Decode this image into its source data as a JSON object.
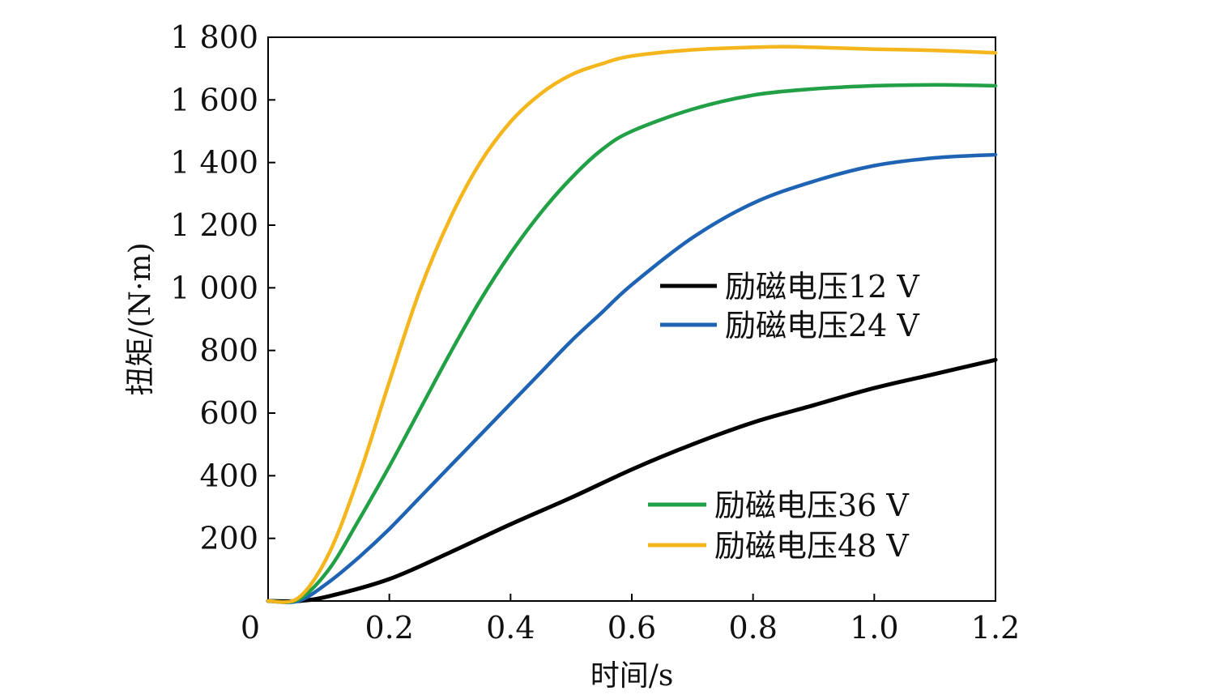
{
  "chart_data": {
    "type": "line",
    "xlabel": "时间/s",
    "ylabel": "扭矩/(N·m)",
    "xlim": [
      0,
      1.2
    ],
    "ylim": [
      0,
      1800
    ],
    "x_ticks": [
      0,
      0.2,
      0.4,
      0.6,
      0.8,
      1.0,
      1.2
    ],
    "x_tick_labels": [
      "0",
      "0.2",
      "0.4",
      "0.6",
      "0.8",
      "1.0",
      "1.2"
    ],
    "y_ticks": [
      200,
      400,
      600,
      800,
      1000,
      1200,
      1400,
      1600,
      1800
    ],
    "y_tick_labels": [
      "200",
      "400",
      "600",
      "800",
      "1 000",
      "1 200",
      "1 400",
      "1 600",
      "1 800"
    ],
    "grid": false,
    "legends": [
      {
        "placement": "center-right",
        "entries": [
          0,
          1
        ]
      },
      {
        "placement": "bottom-right",
        "entries": [
          2,
          3
        ]
      }
    ],
    "series": [
      {
        "name": "励磁电压12 V",
        "color": "#000000",
        "x": [
          0,
          0.05,
          0.1,
          0.2,
          0.3,
          0.4,
          0.5,
          0.6,
          0.7,
          0.8,
          0.9,
          1.0,
          1.1,
          1.2
        ],
        "y": [
          0,
          0,
          15,
          70,
          155,
          245,
          330,
          420,
          500,
          570,
          625,
          680,
          725,
          770
        ]
      },
      {
        "name": "励磁电压24 V",
        "color": "#1f64b4",
        "x": [
          0,
          0.05,
          0.1,
          0.15,
          0.2,
          0.25,
          0.3,
          0.35,
          0.4,
          0.45,
          0.5,
          0.55,
          0.6,
          0.7,
          0.8,
          0.9,
          1.0,
          1.1,
          1.2
        ],
        "y": [
          0,
          0,
          60,
          140,
          230,
          330,
          430,
          530,
          630,
          730,
          830,
          920,
          1010,
          1160,
          1270,
          1340,
          1390,
          1415,
          1425
        ]
      },
      {
        "name": "励磁电压36 V",
        "color": "#22a045",
        "x": [
          0,
          0.05,
          0.1,
          0.15,
          0.2,
          0.25,
          0.3,
          0.35,
          0.4,
          0.45,
          0.5,
          0.55,
          0.6,
          0.7,
          0.8,
          0.9,
          1.0,
          1.1,
          1.2
        ],
        "y": [
          0,
          5,
          100,
          260,
          430,
          610,
          790,
          960,
          1110,
          1240,
          1350,
          1440,
          1500,
          1570,
          1615,
          1635,
          1645,
          1648,
          1645
        ]
      },
      {
        "name": "励磁电压48 V",
        "color": "#f4b61c",
        "x": [
          0,
          0.05,
          0.1,
          0.15,
          0.2,
          0.25,
          0.3,
          0.35,
          0.4,
          0.45,
          0.5,
          0.55,
          0.6,
          0.7,
          0.8,
          0.85,
          0.9,
          1.0,
          1.1,
          1.2
        ],
        "y": [
          0,
          10,
          150,
          400,
          700,
          990,
          1220,
          1400,
          1530,
          1620,
          1680,
          1715,
          1740,
          1760,
          1768,
          1770,
          1768,
          1762,
          1758,
          1750
        ]
      }
    ]
  }
}
